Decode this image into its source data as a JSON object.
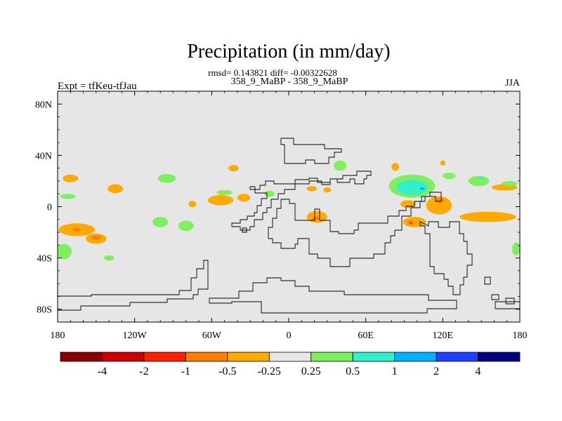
{
  "chart_data": {
    "type": "heatmap",
    "title": "Precipitation (in mm/day)",
    "stats_line": "rmsd= 0.143821 diff= -0.00322628",
    "subtitle_center": "358_9_MaBP - 358_9_MaBP",
    "subtitle_left": "Expt = tfKeu-tfJau",
    "subtitle_right": "JJA",
    "x_axis": {
      "range": [
        -180,
        180
      ],
      "ticks": [
        -180,
        -120,
        -60,
        0,
        60,
        120,
        180
      ],
      "tick_labels": [
        "180",
        "120W",
        "60W",
        "0",
        "60E",
        "120E",
        "180"
      ]
    },
    "y_axis": {
      "range": [
        -90,
        90
      ],
      "ticks": [
        80,
        40,
        0,
        -40,
        -80
      ],
      "tick_labels": [
        "80N",
        "40N",
        "0",
        "40S",
        "80S"
      ]
    },
    "background_color": "#e6e6e6",
    "colorbar": {
      "levels": [
        "-4",
        "-2",
        "-1",
        "-0.5",
        "-0.25",
        "0.25",
        "0.5",
        "1",
        "2",
        "4"
      ],
      "colors": [
        "#8b0000",
        "#cc0000",
        "#ff2200",
        "#ff7f00",
        "#ffaa00",
        "#e6e6e6",
        "#7fee5f",
        "#33f0c8",
        "#00b0ff",
        "#1e40ff",
        "#000080"
      ]
    },
    "anomaly_regions": [
      {
        "lon": -165,
        "lat": -18,
        "rx": 14,
        "ry": 5,
        "class": "-0.5"
      },
      {
        "lon": -150,
        "lat": -25,
        "rx": 8,
        "ry": 4,
        "class": "-0.5"
      },
      {
        "lon": -150,
        "lat": -24,
        "rx": 4,
        "ry": 1.5,
        "class": "-1"
      },
      {
        "lon": -165,
        "lat": -18,
        "rx": 3,
        "ry": 1.5,
        "class": "-1"
      },
      {
        "lon": -170,
        "lat": 22,
        "rx": 6,
        "ry": 3,
        "class": "-0.5"
      },
      {
        "lon": -135,
        "lat": 14,
        "rx": 6,
        "ry": 3.5,
        "class": "-0.5"
      },
      {
        "lon": -75,
        "lat": 2,
        "rx": 3,
        "ry": 2.5,
        "class": "-0.5"
      },
      {
        "lon": -53,
        "lat": 5,
        "rx": 10,
        "ry": 4,
        "class": "-0.5"
      },
      {
        "lon": -35,
        "lat": 7,
        "rx": 5,
        "ry": 3,
        "class": "-0.5"
      },
      {
        "lon": -43,
        "lat": 30,
        "rx": 4,
        "ry": 2.5,
        "class": "-0.5"
      },
      {
        "lon": 22,
        "lat": -8,
        "rx": 8,
        "ry": 4.5,
        "class": "-0.5"
      },
      {
        "lon": 21,
        "lat": -9,
        "rx": 3,
        "ry": 1.5,
        "class": "-1"
      },
      {
        "lon": 18,
        "lat": 14,
        "rx": 4,
        "ry": 2,
        "class": "-0.5"
      },
      {
        "lon": 30,
        "lat": 13,
        "rx": 3,
        "ry": 2,
        "class": "-0.5"
      },
      {
        "lon": 93,
        "lat": 2,
        "rx": 6,
        "ry": 3,
        "class": "-0.5"
      },
      {
        "lon": 98,
        "lat": -12,
        "rx": 9,
        "ry": 4,
        "class": "-0.5"
      },
      {
        "lon": 95,
        "lat": -12,
        "rx": 2.5,
        "ry": 1.5,
        "class": "-1"
      },
      {
        "lon": 95,
        "lat": -13,
        "rx": 1,
        "ry": 0.7,
        "class": "-2"
      },
      {
        "lon": 117,
        "lat": 1,
        "rx": 10,
        "ry": 7,
        "class": "-0.5"
      },
      {
        "lon": 118,
        "lat": 5,
        "rx": 3,
        "ry": 2,
        "class": "-1"
      },
      {
        "lon": 155,
        "lat": -8,
        "rx": 22,
        "ry": 4,
        "class": "-0.5"
      },
      {
        "lon": 83,
        "lat": 31,
        "rx": 3,
        "ry": 3,
        "class": "-0.5"
      },
      {
        "lon": 120,
        "lat": 34,
        "rx": 2,
        "ry": 2,
        "class": "-0.5"
      },
      {
        "lon": 168,
        "lat": 15,
        "rx": 10,
        "ry": 2.5,
        "class": "-0.5"
      },
      {
        "lon": 96,
        "lat": 16,
        "rx": 18,
        "ry": 9,
        "class": "0.5"
      },
      {
        "lon": 96,
        "lat": 15,
        "rx": 12,
        "ry": 6,
        "class": "1"
      },
      {
        "lon": 104,
        "lat": 14,
        "rx": 2,
        "ry": 1,
        "class": "2"
      },
      {
        "lon": 125,
        "lat": 24,
        "rx": 5,
        "ry": 2.5,
        "class": "0.5"
      },
      {
        "lon": 148,
        "lat": 20,
        "rx": 8,
        "ry": 4,
        "class": "0.5"
      },
      {
        "lon": 150,
        "lat": 22,
        "rx": 2,
        "ry": 1,
        "class": "1"
      },
      {
        "lon": 172,
        "lat": 18,
        "rx": 6,
        "ry": 2,
        "class": "0.5"
      },
      {
        "lon": -95,
        "lat": 22,
        "rx": 7,
        "ry": 3.5,
        "class": "0.5"
      },
      {
        "lon": -15,
        "lat": 10,
        "rx": 4,
        "ry": 2.5,
        "class": "0.5"
      },
      {
        "lon": -50,
        "lat": 11,
        "rx": 6,
        "ry": 2,
        "class": "0.5"
      },
      {
        "lon": -172,
        "lat": 8,
        "rx": 6,
        "ry": 2,
        "class": "0.5"
      },
      {
        "lon": -100,
        "lat": -12,
        "rx": 6,
        "ry": 4,
        "class": "0.5"
      },
      {
        "lon": -80,
        "lat": -15,
        "rx": 6,
        "ry": 4,
        "class": "0.5"
      },
      {
        "lon": -175,
        "lat": -35,
        "rx": 6,
        "ry": 6,
        "class": "0.5"
      },
      {
        "lon": -140,
        "lat": -40,
        "rx": 4,
        "ry": 2,
        "class": "0.5"
      },
      {
        "lon": 177,
        "lat": -33,
        "rx": 3,
        "ry": 5,
        "class": "0.5"
      },
      {
        "lon": 40,
        "lat": 32,
        "rx": 5,
        "ry": 4,
        "class": "0.5"
      }
    ]
  }
}
